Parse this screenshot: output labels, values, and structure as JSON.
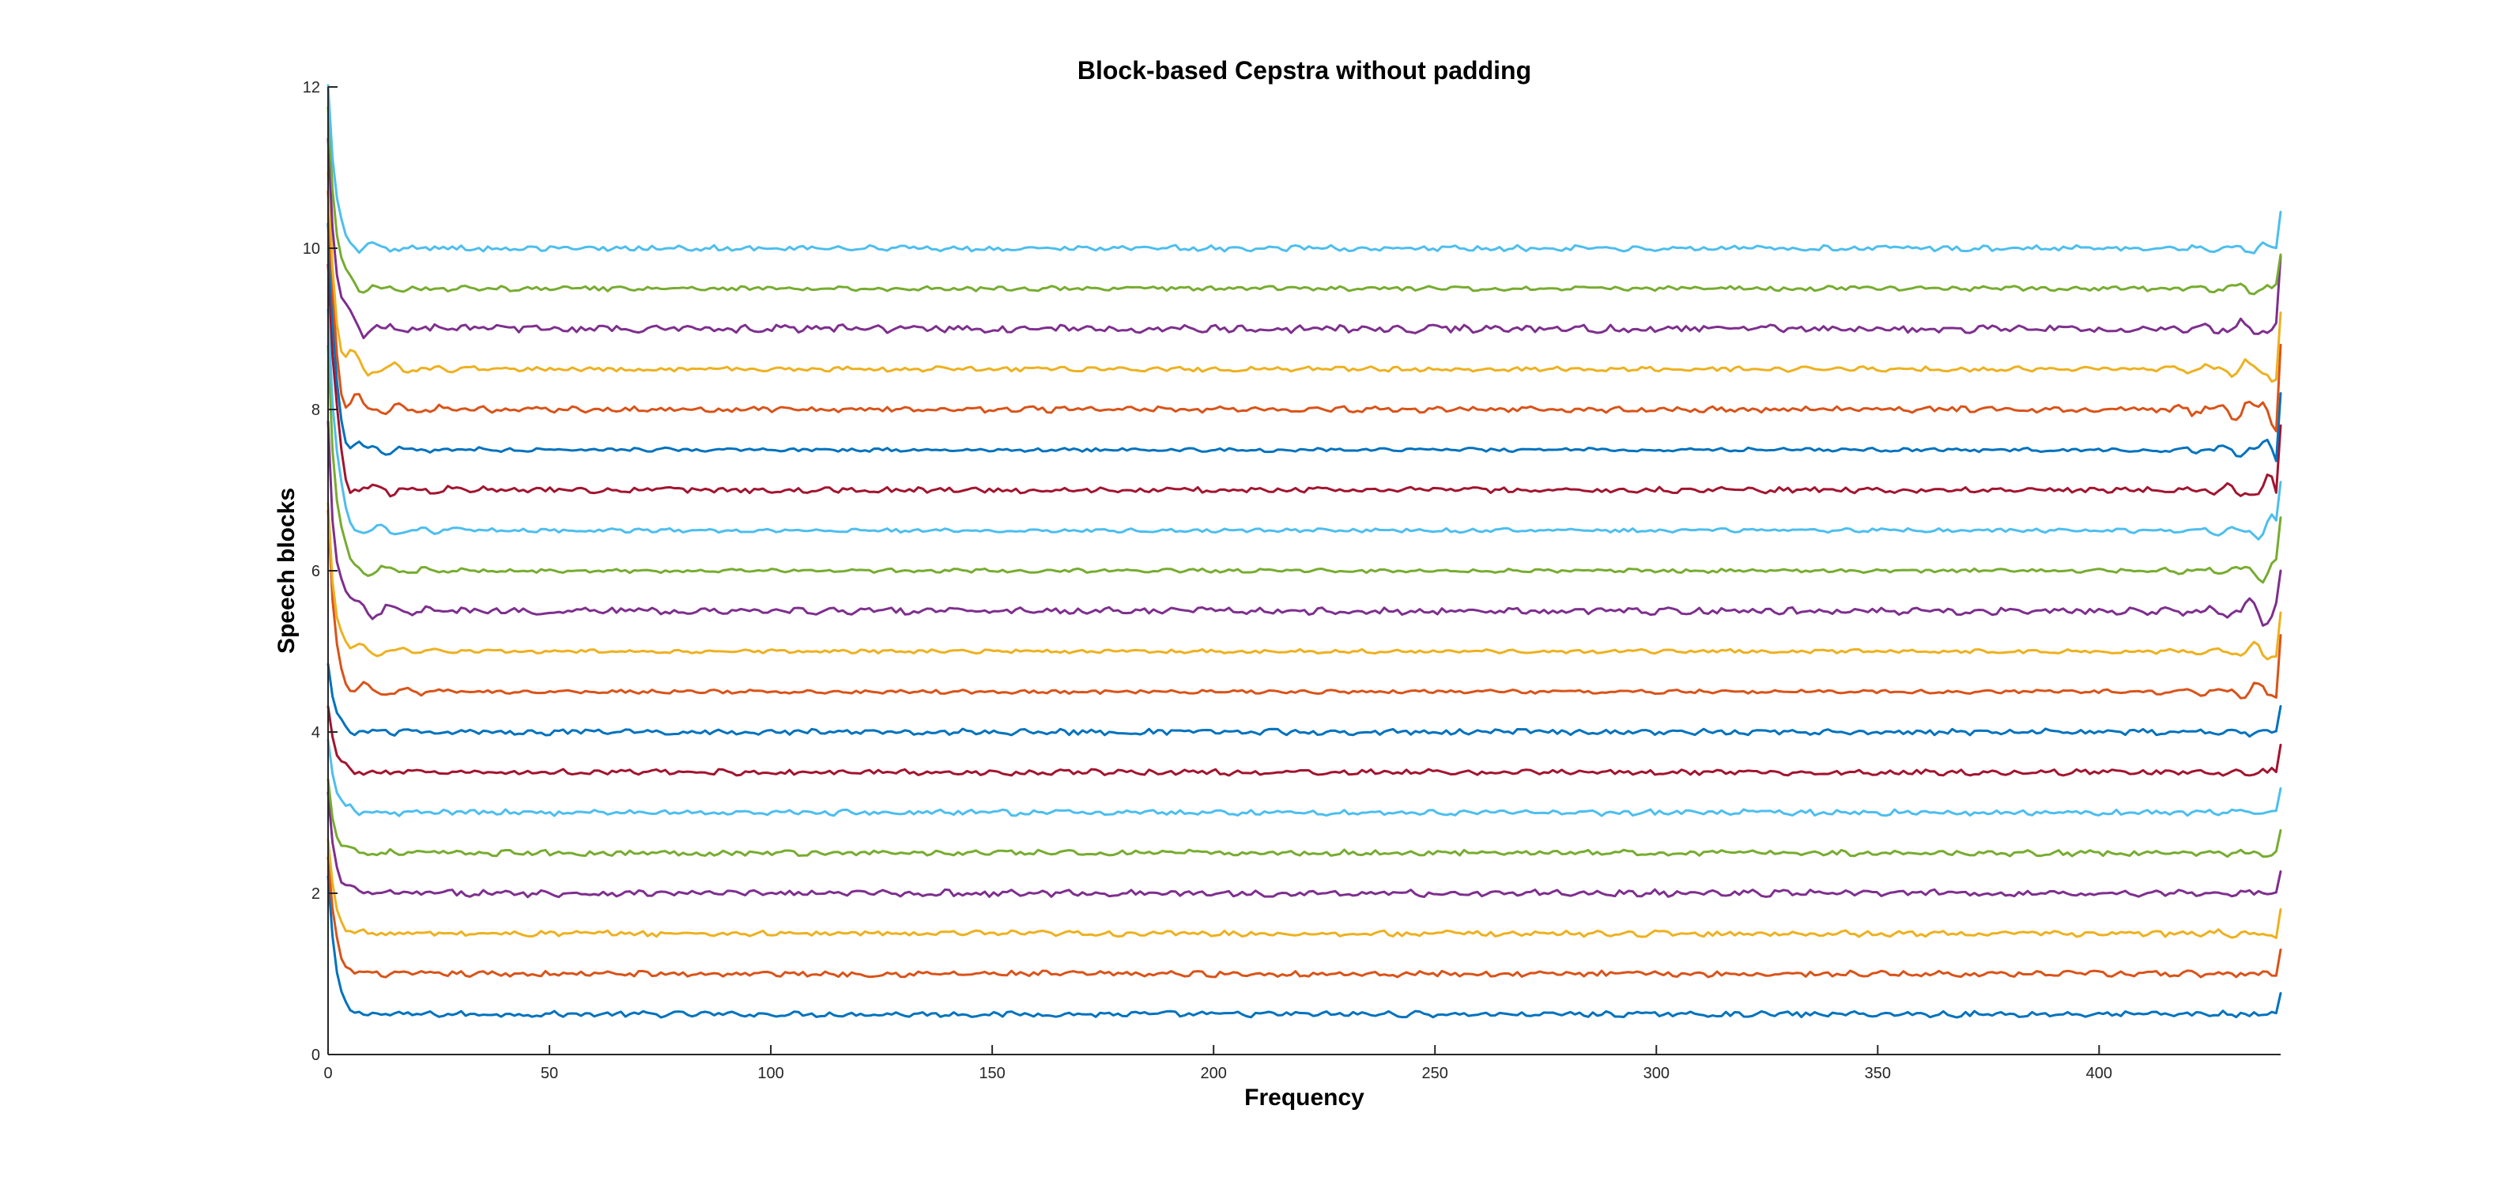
{
  "chart_data": {
    "type": "line",
    "title": "Block-based Cepstra without padding",
    "xlabel": "Frequency",
    "ylabel": "Speech blocks",
    "xlim": [
      0,
      441
    ],
    "ylim": [
      0,
      12
    ],
    "xticks": [
      0,
      50,
      100,
      150,
      200,
      250,
      300,
      350,
      400
    ],
    "yticks": [
      0,
      2,
      4,
      6,
      8,
      10,
      12
    ],
    "grid": false,
    "legend": "none",
    "n_points": 441,
    "series": [
      {
        "color": "#0072BD",
        "offset": 0.5,
        "start_peak": 2.2,
        "end_value": 0.76,
        "ripple": 0.03,
        "edge_ripple": 0.03
      },
      {
        "color": "#D95319",
        "offset": 1.0,
        "start_peak": 2.4,
        "end_value": 1.3,
        "ripple": 0.03,
        "edge_ripple": 0.04
      },
      {
        "color": "#EDB120",
        "offset": 1.5,
        "start_peak": 2.6,
        "end_value": 1.8,
        "ripple": 0.03,
        "edge_ripple": 0.05
      },
      {
        "color": "#7E2F8E",
        "offset": 2.0,
        "start_peak": 3.2,
        "end_value": 2.27,
        "ripple": 0.035,
        "edge_ripple": 0.05
      },
      {
        "color": "#77AC30",
        "offset": 2.5,
        "start_peak": 3.4,
        "end_value": 2.78,
        "ripple": 0.03,
        "edge_ripple": 0.05
      },
      {
        "color": "#4DBEEE",
        "offset": 3.0,
        "start_peak": 3.9,
        "end_value": 3.3,
        "ripple": 0.03,
        "edge_ripple": 0.05
      },
      {
        "color": "#A2142F",
        "offset": 3.5,
        "start_peak": 4.3,
        "end_value": 3.84,
        "ripple": 0.03,
        "edge_ripple": 0.06
      },
      {
        "color": "#0072BD",
        "offset": 4.0,
        "start_peak": 4.8,
        "end_value": 4.32,
        "ripple": 0.03,
        "edge_ripple": 0.05
      },
      {
        "color": "#D95319",
        "offset": 4.5,
        "start_peak": 6.6,
        "end_value": 5.2,
        "ripple": 0.02,
        "edge_ripple": 0.2
      },
      {
        "color": "#EDB120",
        "offset": 5.0,
        "start_peak": 6.8,
        "end_value": 5.48,
        "ripple": 0.02,
        "edge_ripple": 0.18
      },
      {
        "color": "#7E2F8E",
        "offset": 5.5,
        "start_peak": 8.0,
        "end_value": 6.0,
        "ripple": 0.035,
        "edge_ripple": 0.3
      },
      {
        "color": "#77AC30",
        "offset": 6.0,
        "start_peak": 9.0,
        "end_value": 6.66,
        "ripple": 0.02,
        "edge_ripple": 0.2
      },
      {
        "color": "#4DBEEE",
        "offset": 6.5,
        "start_peak": 9.4,
        "end_value": 7.1,
        "ripple": 0.02,
        "edge_ripple": 0.22
      },
      {
        "color": "#A2142F",
        "offset": 7.0,
        "start_peak": 9.8,
        "end_value": 7.8,
        "ripple": 0.03,
        "edge_ripple": 0.28
      },
      {
        "color": "#0072BD",
        "offset": 7.5,
        "start_peak": 10.2,
        "end_value": 8.2,
        "ripple": 0.02,
        "edge_ripple": 0.22
      },
      {
        "color": "#D95319",
        "offset": 8.0,
        "start_peak": 10.6,
        "end_value": 8.8,
        "ripple": 0.03,
        "edge_ripple": 0.32
      },
      {
        "color": "#EDB120",
        "offset": 8.5,
        "start_peak": 11.0,
        "end_value": 9.2,
        "ripple": 0.025,
        "edge_ripple": 0.28
      },
      {
        "color": "#7E2F8E",
        "offset": 9.0,
        "start_peak": 11.5,
        "end_value": 9.9,
        "ripple": 0.04,
        "edge_ripple": 0.22
      },
      {
        "color": "#77AC30",
        "offset": 9.5,
        "start_peak": 11.8,
        "end_value": 9.92,
        "ripple": 0.025,
        "edge_ripple": 0.12
      },
      {
        "color": "#4DBEEE",
        "offset": 10.0,
        "start_peak": 12.0,
        "end_value": 10.45,
        "ripple": 0.03,
        "edge_ripple": 0.12
      }
    ]
  }
}
